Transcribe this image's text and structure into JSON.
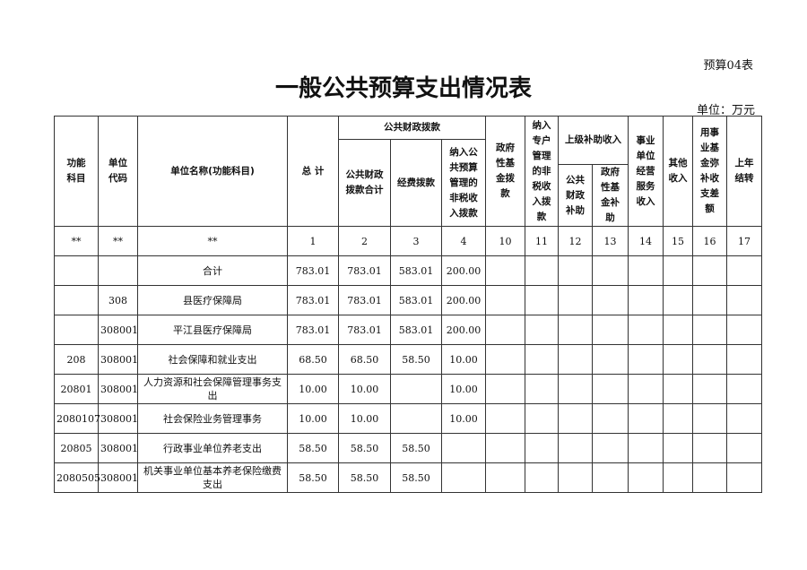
{
  "doc": {
    "code": "预算04表",
    "title": "一般公共预算支出情况表",
    "unit": "单位：万元"
  },
  "headers": {
    "func": "功能\n科目",
    "unitcode": "单位\n代码",
    "name": "单位名称(功能科目)",
    "total": "总 计",
    "public": "公共财政拨款",
    "public_sum": "公共财政\n拨款合计",
    "funds": "经费拨款",
    "nontax": "纳入公\n共预算\n管理的\n非税收\n入拨款",
    "govfund": "政府\n性基\n金拨\n款",
    "special": "纳入\n专户\n管理\n的非\n税收\n入拨\n款",
    "upper": "上级补助收入",
    "upper_public": "公共\n财政\n补助",
    "upper_gov": "政府\n性基\n金补\n助",
    "business": "事业\n单位\n经营\n服务\n收入",
    "other": "其他\n收入",
    "fund_diff": "用事\n业基\n金弥\n补收\n支差\n额",
    "carry": "上年\n结转"
  },
  "index_row": [
    "**",
    "**",
    "**",
    "1",
    "2",
    "3",
    "4",
    "10",
    "11",
    "12",
    "13",
    "14",
    "15",
    "16",
    "17"
  ],
  "rows": [
    [
      "",
      "",
      "合计",
      "783.01",
      "783.01",
      "583.01",
      "200.00"
    ],
    [
      "",
      "308",
      "县医疗保障局",
      "783.01",
      "783.01",
      "583.01",
      "200.00"
    ],
    [
      "",
      "308001",
      "平江县医疗保障局",
      "783.01",
      "783.01",
      "583.01",
      "200.00"
    ],
    [
      "208",
      "308001",
      "社会保障和就业支出",
      "68.50",
      "68.50",
      "58.50",
      "10.00"
    ],
    [
      "20801",
      "308001",
      "人力资源和社会保障管理事务支出",
      "10.00",
      "10.00",
      "",
      "10.00"
    ],
    [
      "2080107",
      "308001",
      "社会保险业务管理事务",
      "10.00",
      "10.00",
      "",
      "10.00"
    ],
    [
      "20805",
      "308001",
      "行政事业单位养老支出",
      "58.50",
      "58.50",
      "58.50",
      ""
    ],
    [
      "2080505",
      "308001",
      "机关事业单位基本养老保险缴费支出",
      "58.50",
      "58.50",
      "58.50",
      ""
    ]
  ]
}
